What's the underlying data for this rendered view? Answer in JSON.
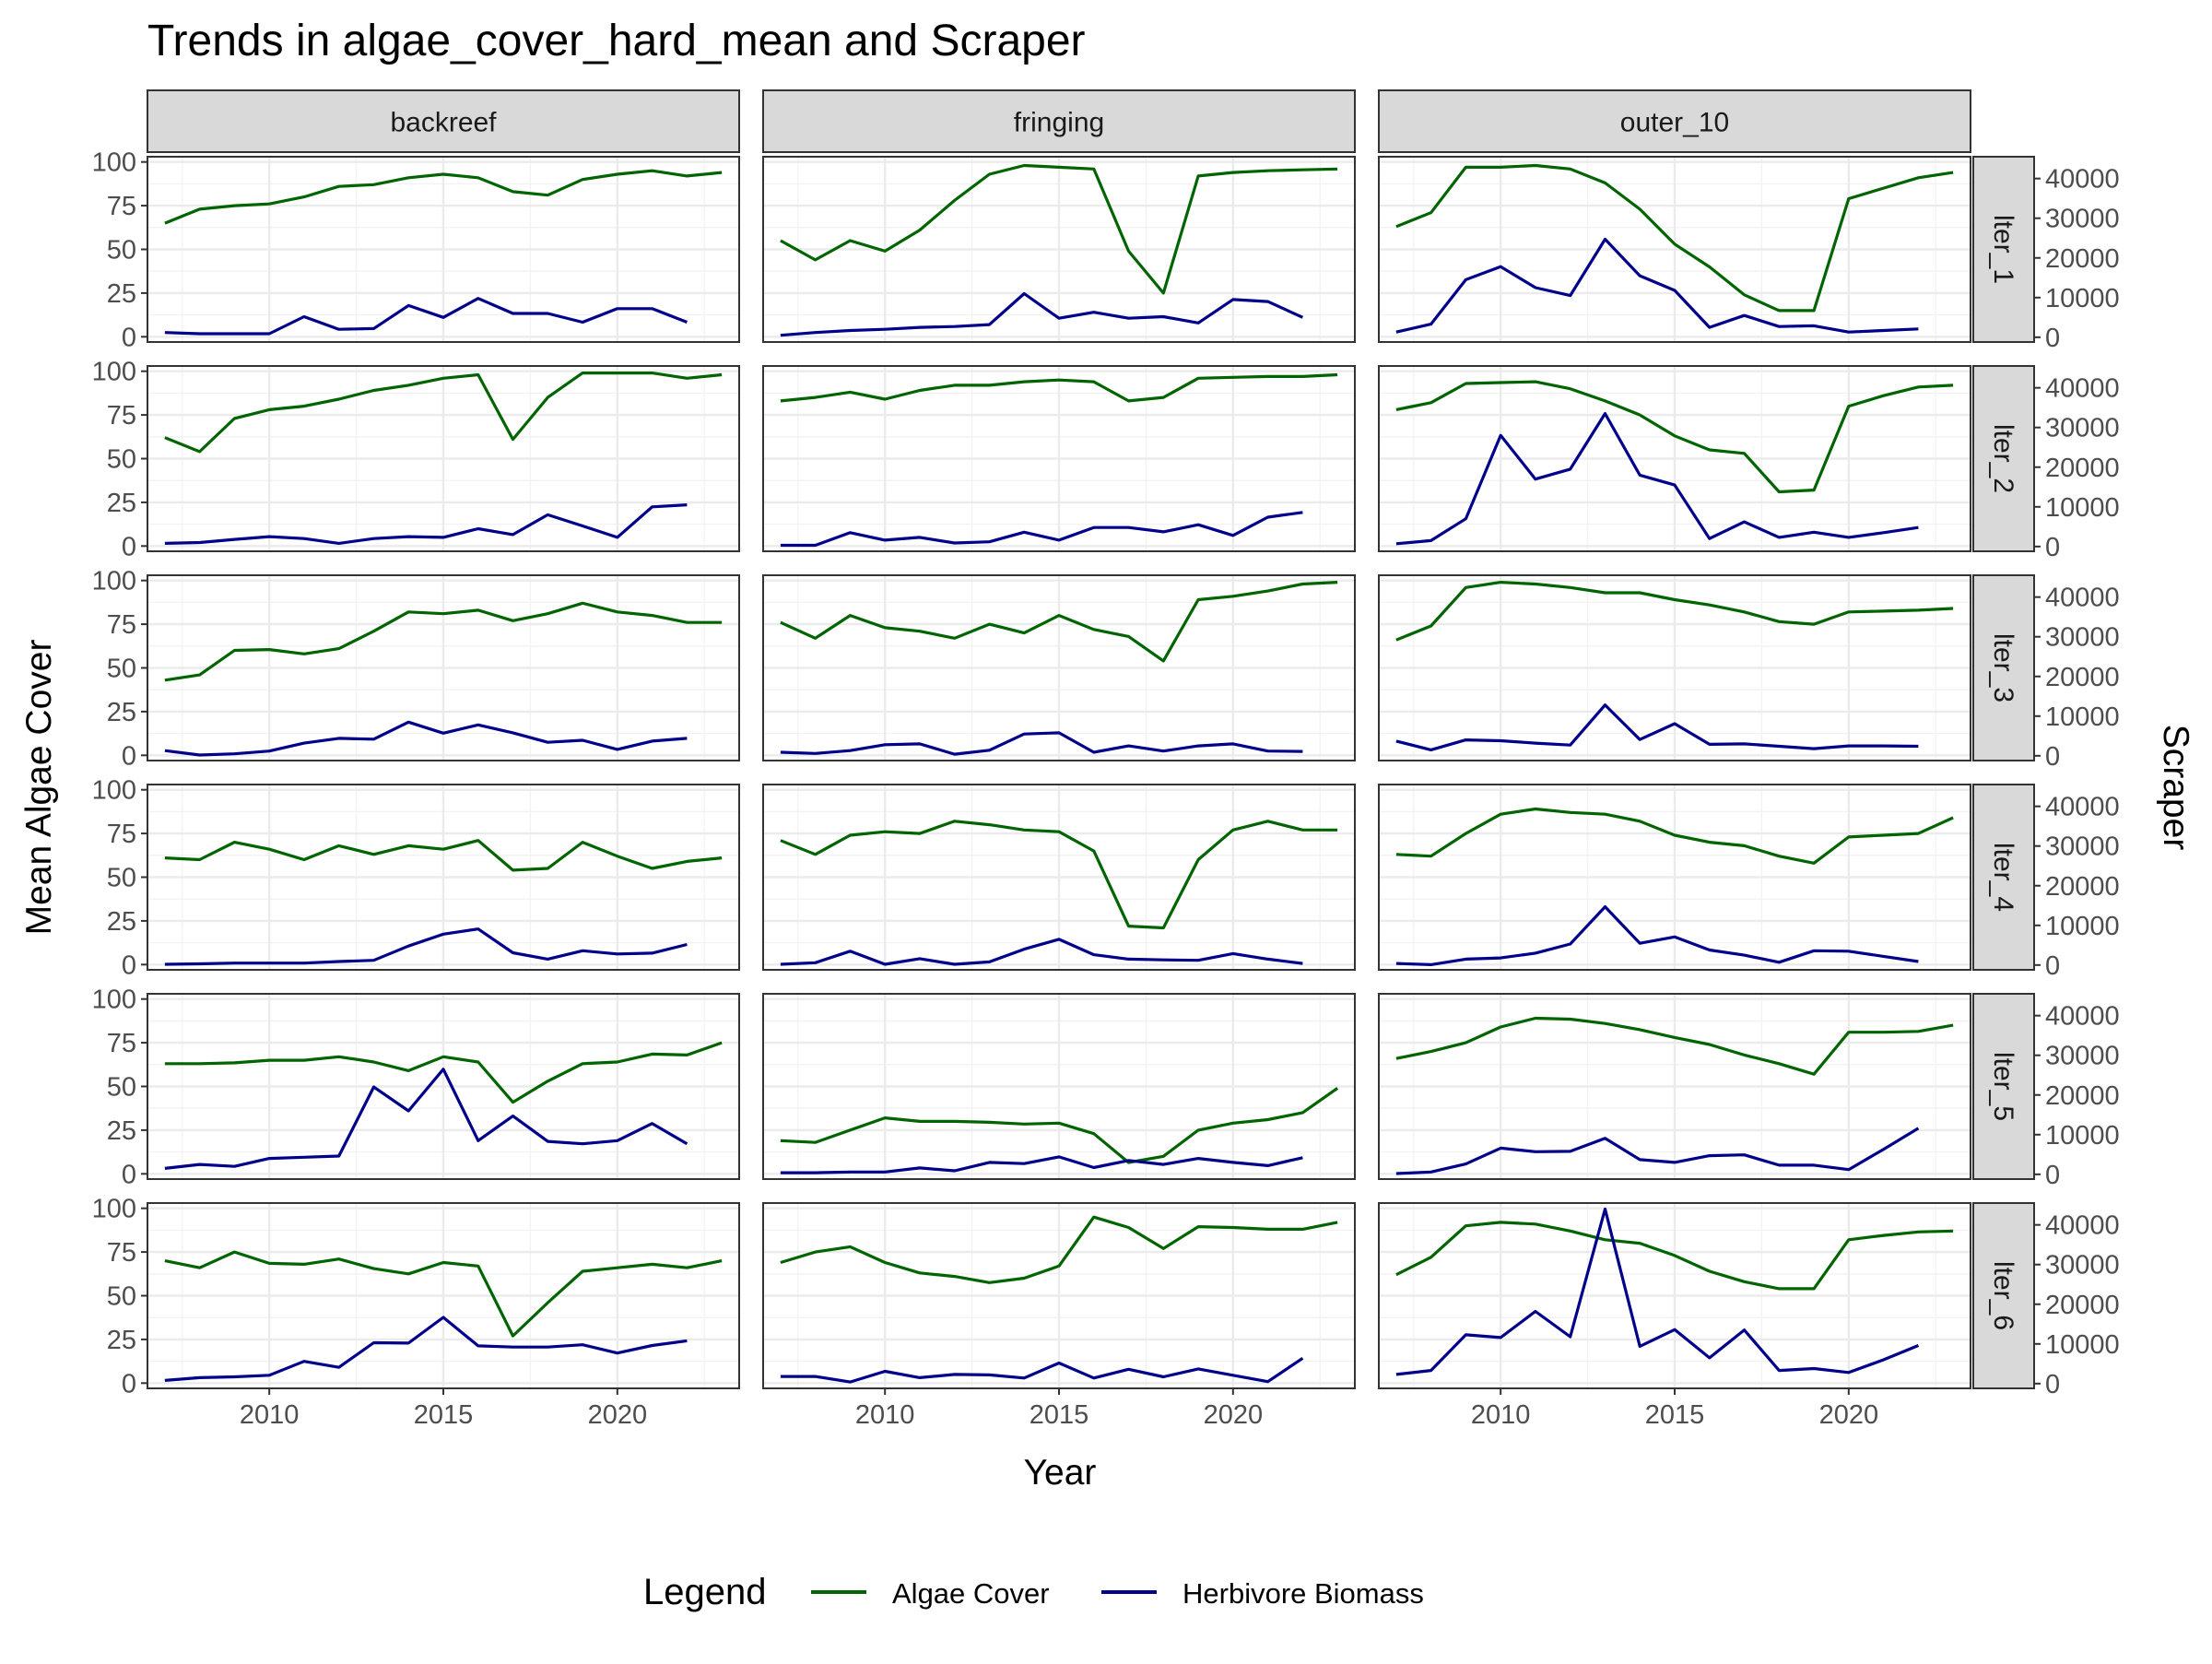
{
  "chart_data": {
    "type": "line",
    "title": "Trends in algae_cover_hard_mean and Scraper",
    "xlabel": "Year",
    "ylabel_left": "Mean Algae Cover",
    "ylabel_right": "Scraper",
    "facet_columns": [
      "backreef",
      "fringing",
      "outer_10"
    ],
    "facet_rows": [
      "lter_1",
      "lter_2",
      "lter_3",
      "lter_4",
      "lter_5",
      "lter_6"
    ],
    "xlim": [
      2006.5,
      2023.5
    ],
    "x_ticks": [
      2010,
      2015,
      2020
    ],
    "ylim_left": [
      -3,
      103
    ],
    "y_ticks_left": [
      0,
      25,
      50,
      75,
      100
    ],
    "ylim_right": [
      -1200,
      45500
    ],
    "y_ticks_right": [
      0,
      10000,
      20000,
      30000,
      40000
    ],
    "grid": true,
    "legend": {
      "title": "Legend",
      "position": "bottom",
      "entries": [
        {
          "label": "Algae Cover",
          "color": "#006400"
        },
        {
          "label": "Herbivore Biomass",
          "color": "#00008b"
        }
      ]
    },
    "algae_years": [
      2007,
      2008,
      2009,
      2010,
      2011,
      2012,
      2013,
      2014,
      2015,
      2016,
      2017,
      2018,
      2019,
      2020,
      2021,
      2022,
      2023
    ],
    "herbivore_years": [
      2007,
      2008,
      2009,
      2010,
      2011,
      2012,
      2013,
      2014,
      2015,
      2016,
      2017,
      2018,
      2019,
      2020,
      2021,
      2022
    ],
    "panels": [
      {
        "column": "backreef",
        "row": "lter_1",
        "algae_cover": [
          65,
          73,
          75,
          76,
          80,
          86,
          87,
          91,
          93,
          91,
          83,
          81,
          90,
          93,
          95,
          92,
          94
        ],
        "herbivore_biomass": [
          1200,
          900,
          900,
          900,
          5200,
          2000,
          2200,
          8000,
          5000,
          9800,
          6000,
          6000,
          3800,
          7200,
          7200,
          3800
        ]
      },
      {
        "column": "fringing",
        "row": "lter_1",
        "algae_cover": [
          55,
          44,
          55,
          49,
          61,
          78,
          93,
          98,
          97,
          96,
          49,
          25,
          92,
          94,
          95,
          95.5,
          96
        ],
        "herbivore_biomass": [
          500,
          1200,
          1700,
          2000,
          2500,
          2700,
          3200,
          11000,
          4800,
          6300,
          4800,
          5200,
          3600,
          9500,
          9000,
          5000
        ]
      },
      {
        "column": "outer_10",
        "row": "lter_1",
        "algae_cover": [
          63,
          71,
          97,
          97,
          98,
          96,
          88,
          73,
          53,
          40,
          24,
          15,
          15,
          79,
          85,
          91,
          94
        ],
        "herbivore_biomass": [
          1300,
          3300,
          14500,
          17800,
          12500,
          10500,
          24700,
          15500,
          11800,
          2500,
          5500,
          2700,
          2900,
          1300,
          1700,
          2100
        ]
      },
      {
        "column": "backreef",
        "row": "lter_2",
        "algae_cover": [
          62,
          54,
          73,
          78,
          80,
          84,
          89,
          92,
          96,
          98,
          61,
          85,
          99,
          99,
          99,
          96,
          98
        ],
        "herbivore_biomass": [
          800,
          1000,
          1800,
          2500,
          2000,
          800,
          2000,
          2500,
          2300,
          4500,
          3000,
          8000,
          5200,
          2300,
          10000,
          10500
        ]
      },
      {
        "column": "fringing",
        "row": "lter_2",
        "algae_cover": [
          83,
          85,
          88,
          84,
          89,
          92,
          92,
          94,
          95,
          94,
          83,
          85,
          96,
          96.5,
          97,
          97,
          98
        ],
        "herbivore_biomass": [
          300,
          300,
          3500,
          1600,
          2300,
          900,
          1200,
          3600,
          1600,
          4800,
          4800,
          3700,
          5500,
          2800,
          7400,
          8600
        ]
      },
      {
        "column": "outer_10",
        "row": "lter_2",
        "algae_cover": [
          78,
          82,
          93,
          93.5,
          94,
          90,
          83,
          75,
          63,
          55,
          53,
          31,
          32,
          80,
          86,
          91,
          92
        ],
        "herbivore_biomass": [
          700,
          1500,
          7000,
          28000,
          17000,
          19500,
          33500,
          18000,
          15500,
          2000,
          6200,
          2300,
          3600,
          2300,
          3500,
          4800
        ]
      },
      {
        "column": "backreef",
        "row": "lter_3",
        "algae_cover": [
          43,
          46,
          60,
          60.5,
          58,
          61,
          71,
          82,
          81,
          83,
          77,
          81,
          87,
          82,
          80,
          76,
          76
        ],
        "herbivore_biomass": [
          1300,
          200,
          500,
          1200,
          3200,
          4400,
          4200,
          8500,
          5700,
          7800,
          5800,
          3400,
          3900,
          1600,
          3700,
          4400
        ]
      },
      {
        "column": "fringing",
        "row": "lter_3",
        "algae_cover": [
          76,
          67,
          80,
          73,
          71,
          67,
          75,
          70,
          80,
          72,
          68,
          54,
          89,
          91,
          94,
          98,
          99
        ],
        "herbivore_biomass": [
          900,
          600,
          1300,
          2800,
          3000,
          400,
          1400,
          5500,
          5800,
          900,
          2500,
          1200,
          2500,
          3000,
          1200,
          1100
        ]
      },
      {
        "column": "outer_10",
        "row": "lter_3",
        "algae_cover": [
          66,
          74,
          96,
          99,
          98,
          96,
          93,
          93,
          89,
          86,
          82,
          76.5,
          75,
          82,
          82.5,
          83,
          84
        ],
        "herbivore_biomass": [
          3700,
          1500,
          4000,
          3800,
          3200,
          2700,
          12800,
          4100,
          8100,
          2900,
          3000,
          2400,
          1800,
          2500,
          2500,
          2400
        ]
      },
      {
        "column": "backreef",
        "row": "lter_4",
        "algae_cover": [
          61,
          60,
          70,
          66,
          60,
          68,
          63,
          68,
          66,
          71,
          54,
          55,
          70,
          62,
          55,
          59,
          61
        ],
        "herbivore_biomass": [
          200,
          300,
          500,
          500,
          500,
          900,
          1200,
          4800,
          7800,
          9100,
          3100,
          1500,
          3600,
          2800,
          3000,
          5200
        ]
      },
      {
        "column": "fringing",
        "row": "lter_4",
        "algae_cover": [
          71,
          63,
          74,
          76,
          75,
          82,
          80,
          77,
          76,
          65,
          22,
          21,
          60,
          77,
          82,
          77,
          77
        ],
        "herbivore_biomass": [
          200,
          600,
          3500,
          200,
          1600,
          200,
          800,
          4000,
          6500,
          2600,
          1500,
          1300,
          1200,
          2900,
          1500,
          400
        ]
      },
      {
        "column": "outer_10",
        "row": "lter_4",
        "algae_cover": [
          63,
          62,
          75,
          86,
          89,
          87,
          86,
          82,
          74,
          70,
          68,
          62,
          58,
          73,
          74,
          75,
          84
        ],
        "herbivore_biomass": [
          400,
          100,
          1500,
          1800,
          3000,
          5300,
          14700,
          5500,
          7100,
          3800,
          2500,
          700,
          3600,
          3500,
          2200,
          900
        ]
      },
      {
        "column": "backreef",
        "row": "lter_5",
        "algae_cover": [
          63,
          63,
          63.5,
          65,
          65,
          67,
          64,
          59,
          67,
          64,
          41,
          53,
          63,
          64,
          68.5,
          68,
          75
        ],
        "herbivore_biomass": [
          1500,
          2500,
          2000,
          4000,
          4300,
          4600,
          22000,
          16000,
          26500,
          8500,
          14700,
          8300,
          7700,
          8500,
          12800,
          7700
        ]
      },
      {
        "column": "fringing",
        "row": "lter_5",
        "algae_cover": [
          19,
          18,
          25,
          32,
          30,
          30,
          29.5,
          28.5,
          29,
          23,
          6.5,
          10,
          25,
          29,
          31,
          35,
          49
        ],
        "herbivore_biomass": [
          400,
          400,
          600,
          600,
          1600,
          900,
          3000,
          2700,
          4400,
          1700,
          3500,
          2500,
          4000,
          3000,
          2200,
          4200
        ]
      },
      {
        "column": "outer_10",
        "row": "lter_5",
        "algae_cover": [
          66,
          70,
          75,
          84,
          89,
          88.5,
          86,
          82.5,
          78,
          74,
          68,
          63,
          57,
          81,
          81,
          81.5,
          85
        ],
        "herbivore_biomass": [
          200,
          600,
          2600,
          6600,
          5700,
          5800,
          9100,
          3700,
          3000,
          4700,
          4900,
          2300,
          2300,
          1200,
          6300,
          11600
        ]
      },
      {
        "column": "backreef",
        "row": "lter_6",
        "algae_cover": [
          70,
          66,
          75,
          68.5,
          68,
          71,
          65.5,
          62.5,
          69,
          67,
          27,
          46,
          64,
          66,
          68,
          66,
          70
        ],
        "herbivore_biomass": [
          800,
          1500,
          1700,
          2100,
          5600,
          4100,
          10300,
          10200,
          16700,
          9500,
          9200,
          9200,
          9800,
          7700,
          9600,
          10800
        ]
      },
      {
        "column": "fringing",
        "row": "lter_6",
        "algae_cover": [
          69,
          75,
          78,
          69,
          63,
          61,
          57.5,
          60,
          67,
          95,
          89,
          77,
          89.5,
          89,
          88,
          88,
          92
        ],
        "herbivore_biomass": [
          1800,
          1800,
          400,
          3100,
          1500,
          2300,
          2200,
          1400,
          5200,
          1400,
          3600,
          1700,
          3700,
          2100,
          500,
          6400
        ]
      },
      {
        "column": "outer_10",
        "row": "lter_6",
        "algae_cover": [
          62,
          72,
          90,
          92,
          91,
          87,
          82,
          80,
          73,
          64,
          58,
          54,
          54,
          82,
          84.5,
          86.5,
          87
        ],
        "herbivore_biomass": [
          2300,
          3300,
          12300,
          11600,
          18200,
          11800,
          44000,
          9400,
          13600,
          6500,
          13500,
          3300,
          3800,
          2800,
          6000,
          9600
        ]
      }
    ]
  }
}
